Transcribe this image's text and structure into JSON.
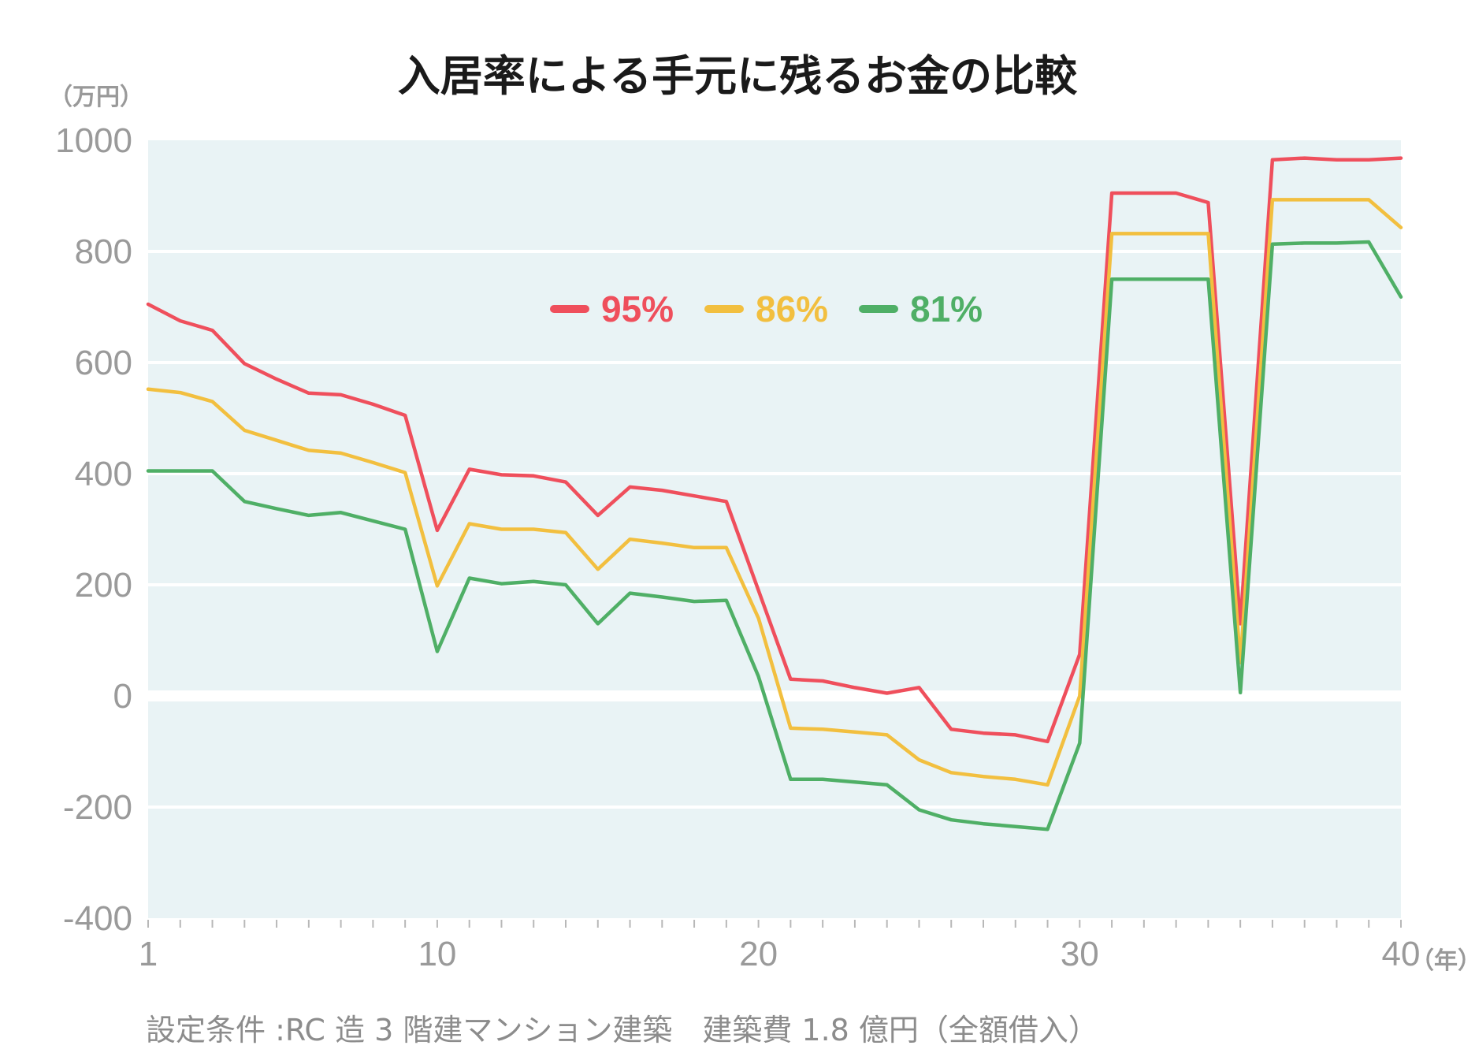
{
  "chart_data": {
    "type": "line",
    "title": "入居率による手元に残るお金の比較",
    "y_unit_label": "（万円）",
    "x_unit_label": "（年）",
    "footnote": "設定条件 :RC 造 3 階建マンション建築　建築費 1.8 億円（全額借入）",
    "xlim": [
      1,
      40
    ],
    "ylim": [
      -400,
      1000
    ],
    "x_ticks": [
      1,
      10,
      20,
      30,
      40
    ],
    "y_ticks": [
      -400,
      -200,
      0,
      200,
      400,
      600,
      800,
      1000
    ],
    "grid": true,
    "legend_position": "top-center",
    "colors": {
      "background": "#e9f3f5",
      "grid": "#ffffff",
      "tick_text": "#9a9a9a"
    },
    "x": [
      1,
      2,
      3,
      4,
      5,
      6,
      7,
      8,
      9,
      10,
      11,
      12,
      13,
      14,
      15,
      16,
      17,
      18,
      19,
      20,
      21,
      22,
      23,
      24,
      25,
      26,
      27,
      28,
      29,
      30,
      31,
      32,
      33,
      34,
      35,
      36,
      37,
      38,
      39,
      40
    ],
    "series": [
      {
        "name": "95%",
        "color": "#ef4f5c",
        "values": [
          705,
          675,
          658,
          598,
          570,
          545,
          542,
          525,
          505,
          298,
          408,
          398,
          396,
          385,
          325,
          376,
          370,
          360,
          350,
          190,
          30,
          27,
          15,
          5,
          15,
          -60,
          -67,
          -70,
          -82,
          75,
          905,
          905,
          905,
          888,
          130,
          965,
          968,
          965,
          965,
          968
        ]
      },
      {
        "name": "86%",
        "color": "#f2bf3f",
        "values": [
          552,
          546,
          530,
          478,
          460,
          442,
          437,
          420,
          402,
          198,
          310,
          300,
          300,
          294,
          228,
          282,
          275,
          267,
          267,
          140,
          -58,
          -60,
          -65,
          -70,
          -115,
          -138,
          -145,
          -150,
          -160,
          0,
          832,
          832,
          832,
          832,
          60,
          893,
          893,
          893,
          893,
          843
        ]
      },
      {
        "name": "81%",
        "color": "#4faf66",
        "values": [
          405,
          405,
          405,
          350,
          337,
          325,
          330,
          315,
          300,
          80,
          212,
          202,
          206,
          200,
          130,
          185,
          178,
          170,
          172,
          35,
          -150,
          -150,
          -155,
          -160,
          -205,
          -223,
          -230,
          -235,
          -240,
          -85,
          750,
          750,
          750,
          750,
          6,
          813,
          815,
          815,
          817,
          718
        ]
      }
    ]
  }
}
